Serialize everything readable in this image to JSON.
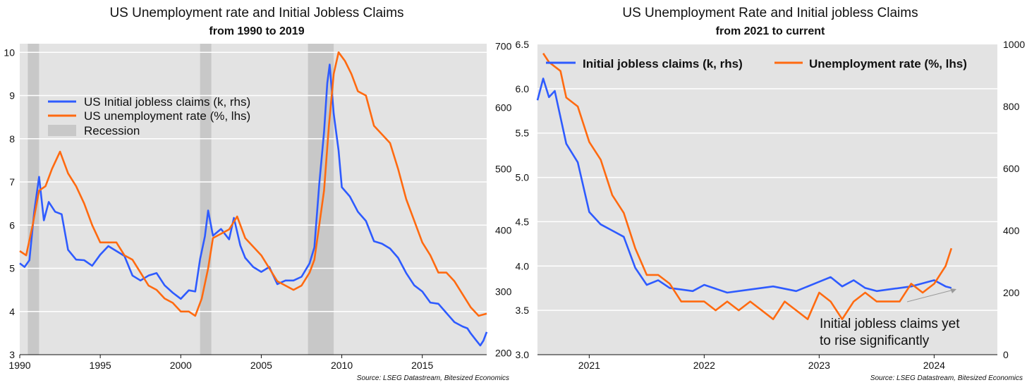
{
  "chart_data": [
    {
      "type": "line",
      "title": "US Unemployment rate and Initial Jobless Claims",
      "subtitle": "from 1990 to 2019",
      "source": "Source: LSEG Datastream, Bitesized Economics",
      "x_range": [
        1990.0,
        2019.0
      ],
      "x_ticks": [
        1990,
        1995,
        2000,
        2005,
        2010,
        2015
      ],
      "y_left": {
        "min": 3,
        "max": 10.2,
        "ticks": [
          3,
          4,
          5,
          6,
          7,
          8,
          9,
          10
        ]
      },
      "y_right": {
        "min": 197,
        "max": 704,
        "ticks": [
          200,
          300,
          400,
          500,
          600,
          700
        ]
      },
      "grid": true,
      "legend_position": "upper-left",
      "legend": [
        {
          "label": "US Initial jobless claims (k, rhs)",
          "color": "#2e5bff",
          "kind": "line"
        },
        {
          "label": "US unemployment rate (%, lhs)",
          "color": "#ff6a10",
          "kind": "line"
        },
        {
          "label": "Recession",
          "color": "#c8c8c8",
          "kind": "box"
        }
      ],
      "recessions": [
        [
          1990.5,
          1991.2
        ],
        [
          2001.2,
          2001.9
        ],
        [
          2007.9,
          2009.5
        ]
      ],
      "series": [
        {
          "name": "US Initial jobless claims (k, rhs)",
          "axis": "right",
          "color": "#2e5bff",
          "x": [
            1990.0,
            1990.3,
            1990.6,
            1990.9,
            1991.2,
            1991.5,
            1991.8,
            1992.2,
            1992.6,
            1993.0,
            1993.5,
            1994.0,
            1994.5,
            1995.0,
            1995.5,
            1996.0,
            1996.5,
            1997.0,
            1997.5,
            1998.0,
            1998.5,
            1999.0,
            1999.5,
            2000.0,
            2000.5,
            2000.9,
            2001.2,
            2001.5,
            2001.7,
            2002.0,
            2002.5,
            2003.0,
            2003.3,
            2003.7,
            2004.0,
            2004.5,
            2005.0,
            2005.5,
            2006.0,
            2006.5,
            2007.0,
            2007.5,
            2008.0,
            2008.3,
            2008.6,
            2008.9,
            2009.1,
            2009.25,
            2009.5,
            2009.8,
            2010.0,
            2010.5,
            2011.0,
            2011.5,
            2012.0,
            2012.5,
            2013.0,
            2013.5,
            2014.0,
            2014.5,
            2015.0,
            2015.5,
            2016.0,
            2016.5,
            2017.0,
            2017.5,
            2017.8,
            2018.0,
            2018.3,
            2018.6,
            2018.8,
            2019.0
          ],
          "values": [
            346,
            340,
            351,
            430,
            487,
            416,
            446,
            430,
            426,
            368,
            352,
            351,
            342,
            360,
            374,
            366,
            358,
            326,
            318,
            326,
            330,
            310,
            298,
            288,
            302,
            300,
            353,
            390,
            432,
            391,
            402,
            385,
            420,
            375,
            355,
            340,
            332,
            340,
            312,
            318,
            318,
            324,
            346,
            372,
            475,
            560,
            640,
            670,
            590,
            530,
            470,
            455,
            430,
            415,
            382,
            378,
            370,
            355,
            330,
            310,
            300,
            282,
            280,
            265,
            250,
            243,
            240,
            232,
            222,
            212,
            220,
            234
          ]
        },
        {
          "name": "US unemployment rate (%, lhs)",
          "axis": "left",
          "color": "#ff6a10",
          "x": [
            1990.0,
            1990.4,
            1990.8,
            1991.2,
            1991.6,
            1992.0,
            1992.5,
            1993.0,
            1993.5,
            1994.0,
            1994.5,
            1995.0,
            1995.5,
            1996.0,
            1996.5,
            1997.0,
            1997.5,
            1998.0,
            1998.5,
            1999.0,
            1999.5,
            2000.0,
            2000.5,
            2000.9,
            2001.3,
            2001.7,
            2002.0,
            2002.5,
            2003.0,
            2003.5,
            2004.0,
            2004.5,
            2005.0,
            2005.5,
            2006.0,
            2006.5,
            2007.0,
            2007.5,
            2008.0,
            2008.3,
            2008.6,
            2008.9,
            2009.2,
            2009.5,
            2009.8,
            2010.2,
            2010.6,
            2011.0,
            2011.5,
            2012.0,
            2012.5,
            2013.0,
            2013.5,
            2014.0,
            2014.5,
            2015.0,
            2015.5,
            2016.0,
            2016.5,
            2017.0,
            2017.5,
            2018.0,
            2018.5,
            2019.0
          ],
          "values": [
            5.4,
            5.3,
            6.0,
            6.8,
            6.9,
            7.3,
            7.7,
            7.2,
            6.9,
            6.5,
            6.0,
            5.6,
            5.6,
            5.6,
            5.3,
            5.2,
            4.9,
            4.6,
            4.5,
            4.3,
            4.2,
            4.0,
            4.0,
            3.9,
            4.3,
            5.0,
            5.7,
            5.8,
            5.9,
            6.2,
            5.7,
            5.5,
            5.3,
            5.0,
            4.7,
            4.6,
            4.5,
            4.6,
            4.9,
            5.2,
            6.0,
            6.8,
            8.3,
            9.5,
            10.0,
            9.8,
            9.5,
            9.1,
            9.0,
            8.3,
            8.1,
            7.9,
            7.3,
            6.6,
            6.1,
            5.6,
            5.3,
            4.9,
            4.9,
            4.7,
            4.4,
            4.1,
            3.9,
            3.95
          ]
        }
      ]
    },
    {
      "type": "line",
      "title": "US Unemployment Rate and Initial jobless Claims",
      "subtitle": "from 2021 to current",
      "source": "Source: LSEG Datastream, Bitesized Economics",
      "x_range": [
        2020.55,
        2024.55
      ],
      "x_ticks": [
        2021,
        2022,
        2023,
        2024
      ],
      "y_left": {
        "min": 3.0,
        "max": 6.5,
        "ticks": [
          "3.0",
          "3.5",
          "4.0",
          "4.5",
          "5.0",
          "5.5",
          "6.0",
          "6.5"
        ]
      },
      "y_right": {
        "min": 0,
        "max": 1000,
        "ticks": [
          0,
          200,
          400,
          600,
          800,
          1000
        ]
      },
      "grid": true,
      "legend_position": "top",
      "legend": [
        {
          "label": "Initial jobless claims (k, rhs)",
          "color": "#2e5bff",
          "kind": "line"
        },
        {
          "label": "Unemployment rate (%, lhs)",
          "color": "#ff6a10",
          "kind": "line"
        }
      ],
      "annotation": {
        "text_line1": "Initial jobless claims yet",
        "text_line2": "to rise significantly"
      },
      "series": [
        {
          "name": "Initial jobless claims (k, rhs)",
          "axis": "right",
          "color": "#2e5bff",
          "x": [
            2020.55,
            2020.6,
            2020.65,
            2020.7,
            2020.8,
            2020.9,
            2021.0,
            2021.1,
            2021.2,
            2021.3,
            2021.4,
            2021.5,
            2021.6,
            2021.7,
            2021.8,
            2021.9,
            2022.0,
            2022.2,
            2022.4,
            2022.6,
            2022.8,
            2023.0,
            2023.1,
            2023.2,
            2023.3,
            2023.4,
            2023.5,
            2023.6,
            2023.8,
            2024.0,
            2024.1,
            2024.15
          ],
          "values": [
            820,
            890,
            830,
            850,
            680,
            620,
            460,
            420,
            400,
            380,
            280,
            225,
            240,
            215,
            210,
            205,
            225,
            200,
            210,
            220,
            205,
            235,
            250,
            220,
            240,
            215,
            205,
            210,
            220,
            240,
            220,
            215
          ]
        },
        {
          "name": "Unemployment rate (%, lhs)",
          "axis": "left",
          "color": "#ff6a10",
          "x": [
            2020.6,
            2020.65,
            2020.75,
            2020.8,
            2020.9,
            2021.0,
            2021.1,
            2021.2,
            2021.3,
            2021.4,
            2021.5,
            2021.6,
            2021.7,
            2021.8,
            2021.9,
            2022.0,
            2022.1,
            2022.2,
            2022.3,
            2022.4,
            2022.5,
            2022.6,
            2022.7,
            2022.8,
            2022.9,
            2023.0,
            2023.1,
            2023.2,
            2023.3,
            2023.4,
            2023.5,
            2023.6,
            2023.7,
            2023.8,
            2023.9,
            2024.0,
            2024.1,
            2024.15
          ],
          "values": [
            6.4,
            6.3,
            6.2,
            5.9,
            5.8,
            5.4,
            5.2,
            4.8,
            4.6,
            4.2,
            3.9,
            3.9,
            3.8,
            3.6,
            3.6,
            3.6,
            3.5,
            3.6,
            3.5,
            3.6,
            3.5,
            3.4,
            3.6,
            3.5,
            3.4,
            3.7,
            3.6,
            3.4,
            3.6,
            3.7,
            3.6,
            3.6,
            3.6,
            3.8,
            3.7,
            3.8,
            4.0,
            4.2
          ]
        }
      ]
    }
  ]
}
